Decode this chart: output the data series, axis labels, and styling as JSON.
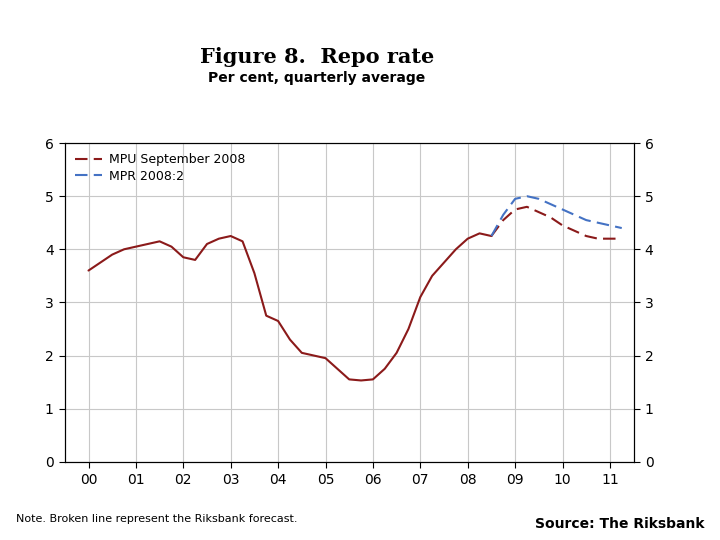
{
  "title": "Figure 8.  Repo rate",
  "subtitle": "Per cent, quarterly average",
  "note": "Note. Broken line represent the Riksbank forecast.",
  "source": "Source: The Riksbank",
  "xlim": [
    -0.5,
    11.5
  ],
  "ylim": [
    0,
    6
  ],
  "yticks": [
    0,
    1,
    2,
    3,
    4,
    5,
    6
  ],
  "xtick_labels": [
    "00",
    "01",
    "02",
    "03",
    "04",
    "05",
    "06",
    "07",
    "08",
    "09",
    "10",
    "11"
  ],
  "mpu_color": "#8B1A1A",
  "mpr_color": "#4472C4",
  "legend_labels": [
    "MPU September 2008",
    "MPR 2008:2"
  ],
  "solid_x": [
    0.0,
    0.25,
    0.5,
    0.75,
    1.0,
    1.25,
    1.5,
    1.75,
    2.0,
    2.25,
    2.5,
    2.75,
    3.0,
    3.25,
    3.5,
    3.75,
    4.0,
    4.25,
    4.5,
    4.75,
    5.0,
    5.25,
    5.5,
    5.75,
    6.0,
    6.25,
    6.5,
    6.75,
    7.0,
    7.25,
    7.5,
    7.75,
    8.0,
    8.25,
    8.5
  ],
  "solid_y": [
    3.6,
    3.75,
    3.9,
    4.0,
    4.05,
    4.1,
    4.15,
    4.05,
    3.85,
    3.8,
    4.1,
    4.2,
    4.25,
    4.15,
    3.55,
    2.75,
    2.65,
    2.3,
    2.05,
    2.0,
    1.95,
    1.75,
    1.55,
    1.53,
    1.55,
    1.75,
    2.05,
    2.5,
    3.1,
    3.5,
    3.75,
    4.0,
    4.2,
    4.3,
    4.25
  ],
  "mpu_dashed_x": [
    8.5,
    8.75,
    9.0,
    9.25,
    9.5,
    9.75,
    10.0,
    10.25,
    10.5,
    10.75,
    11.0,
    11.25
  ],
  "mpu_dashed_y": [
    4.25,
    4.55,
    4.75,
    4.8,
    4.7,
    4.6,
    4.45,
    4.35,
    4.25,
    4.2,
    4.2,
    4.2
  ],
  "mpr_dashed_x": [
    8.5,
    8.75,
    9.0,
    9.25,
    9.5,
    9.75,
    10.0,
    10.25,
    10.5,
    10.75,
    11.0,
    11.25
  ],
  "mpr_dashed_y": [
    4.25,
    4.65,
    4.95,
    5.0,
    4.95,
    4.85,
    4.75,
    4.65,
    4.55,
    4.5,
    4.45,
    4.4
  ],
  "background_color": "#FFFFFF",
  "grid_color": "#C8C8C8",
  "logo_color": "#1B3A6B",
  "bar_color": "#1B3A6B",
  "title_fontsize": 15,
  "subtitle_fontsize": 10,
  "tick_fontsize": 10,
  "note_fontsize": 8,
  "source_fontsize": 10
}
